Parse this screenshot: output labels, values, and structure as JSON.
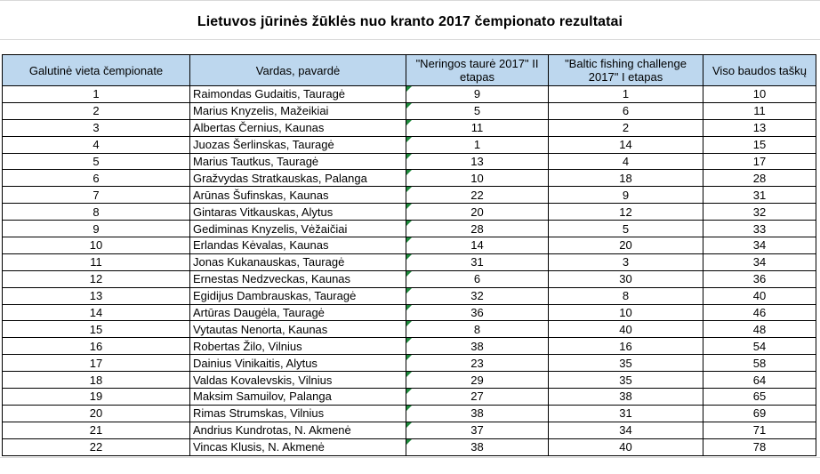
{
  "title": "Lietuvos jūrinės žūklės nuo kranto 2017  čempionato rezultatai",
  "table": {
    "headers": [
      "Galutinė vieta čempionate",
      "Vardas, pavardė",
      "\"Neringos taurė 2017\" II etapas",
      "\"Baltic fishing challenge 2017\" I etapas",
      "Viso baudos taškų"
    ],
    "rows": [
      {
        "place": "1",
        "name": "Raimondas Gudaitis, Tauragė",
        "neringa": "9",
        "baltic": "1",
        "total": "10"
      },
      {
        "place": "2",
        "name": "Marius Knyzelis, Mažeikiai",
        "neringa": "5",
        "baltic": "6",
        "total": "11"
      },
      {
        "place": "3",
        "name": "Albertas Černius, Kaunas",
        "neringa": "11",
        "baltic": "2",
        "total": "13"
      },
      {
        "place": "4",
        "name": "Juozas Šerlinskas, Tauragė",
        "neringa": "1",
        "baltic": "14",
        "total": "15"
      },
      {
        "place": "5",
        "name": "Marius Tautkus, Tauragė",
        "neringa": "13",
        "baltic": "4",
        "total": "17"
      },
      {
        "place": "6",
        "name": "Gražvydas Stratkauskas, Palanga",
        "neringa": "10",
        "baltic": "18",
        "total": "28"
      },
      {
        "place": "7",
        "name": "Arūnas Šufinskas, Kaunas",
        "neringa": "22",
        "baltic": "9",
        "total": "31"
      },
      {
        "place": "8",
        "name": "Gintaras Vitkauskas, Alytus",
        "neringa": "20",
        "baltic": "12",
        "total": "32"
      },
      {
        "place": "9",
        "name": "Gediminas Knyzelis, Vėžaičiai",
        "neringa": "28",
        "baltic": "5",
        "total": "33"
      },
      {
        "place": "10",
        "name": "Erlandas Kėvalas, Kaunas",
        "neringa": "14",
        "baltic": "20",
        "total": "34"
      },
      {
        "place": "11",
        "name": "Jonas Kukanauskas, Tauragė",
        "neringa": "31",
        "baltic": "3",
        "total": "34"
      },
      {
        "place": "12",
        "name": "Ernestas Nedzveckas, Kaunas",
        "neringa": "6",
        "baltic": "30",
        "total": "36"
      },
      {
        "place": "13",
        "name": "Egidijus Dambrauskas, Tauragė",
        "neringa": "32",
        "baltic": "8",
        "total": "40"
      },
      {
        "place": "14",
        "name": "Artūras Daugėla, Tauragė",
        "neringa": "36",
        "baltic": "10",
        "total": "46"
      },
      {
        "place": "15",
        "name": "Vytautas Nenorta, Kaunas",
        "neringa": "8",
        "baltic": "40",
        "total": "48"
      },
      {
        "place": "16",
        "name": "Robertas Žilo, Vilnius",
        "neringa": "38",
        "baltic": "16",
        "total": "54"
      },
      {
        "place": "17",
        "name": "Dainius Vinikaitis, Alytus",
        "neringa": "23",
        "baltic": "35",
        "total": "58"
      },
      {
        "place": "18",
        "name": "Valdas Kovalevskis, Vilnius",
        "neringa": "29",
        "baltic": "35",
        "total": "64"
      },
      {
        "place": "19",
        "name": "Maksim Samuilov, Palanga",
        "neringa": "27",
        "baltic": "38",
        "total": "65"
      },
      {
        "place": "20",
        "name": "Rimas Strumskas, Vilnius",
        "neringa": "38",
        "baltic": "31",
        "total": "69"
      },
      {
        "place": "21",
        "name": "Andrius Kundrotas, N. Akmenė",
        "neringa": "37",
        "baltic": "34",
        "total": "71"
      },
      {
        "place": "22",
        "name": "Vincas Klusis, N. Akmenė",
        "neringa": "38",
        "baltic": "40",
        "total": "78"
      }
    ]
  },
  "colors": {
    "header_fill": "#bdd7ee",
    "error_flag": "#1e8a3c"
  }
}
